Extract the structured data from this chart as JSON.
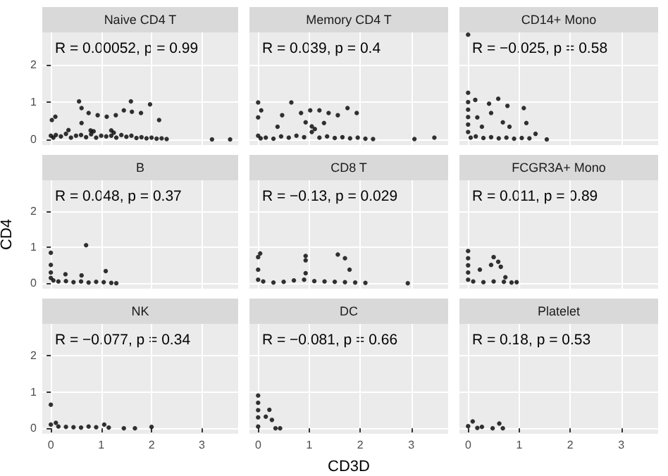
{
  "chart_data": [
    {
      "type": "scatter",
      "title": "Naive CD4 T",
      "annotations": [
        "R = 0.00052, p = 0.99"
      ],
      "x": [
        0.56,
        1.59,
        1.97,
        0.02,
        0.09,
        0.61,
        0.75,
        0.93,
        1.11,
        1.29,
        1.45,
        1.61,
        1.79,
        2.15,
        0.61,
        0.79,
        1.2,
        0,
        0.05,
        0.1,
        0.2,
        0.3,
        0.4,
        0.5,
        0.6,
        0.7,
        0.8,
        0.9,
        1.0,
        1.1,
        1.2,
        1.3,
        1.4,
        1.5,
        1.6,
        1.7,
        1.8,
        1.9,
        2.0,
        2.1,
        2.2,
        2.3,
        0.35,
        0.85,
        1.25,
        3.2,
        3.56
      ],
      "values": [
        1.02,
        1.02,
        0.94,
        0.52,
        0.61,
        0.84,
        0.71,
        0.65,
        0.61,
        0.65,
        0.78,
        0.74,
        0.71,
        0.52,
        0.44,
        0.24,
        0.24,
        0.1,
        0.05,
        0.12,
        0.08,
        0.15,
        0.05,
        0.1,
        0.12,
        0.06,
        0.14,
        0.05,
        0.1,
        0.08,
        0.1,
        0.05,
        0.12,
        0.07,
        0.1,
        0.04,
        0.06,
        0.03,
        0.05,
        0.02,
        0.03,
        0.01,
        0.25,
        0.22,
        0.18,
        0,
        0
      ],
      "color": "#000000",
      "marker": "circle",
      "xlim": [
        -0.17,
        3.72
      ],
      "ylim": [
        -0.15,
        2.87
      ],
      "xticks": [
        0,
        1,
        2,
        3
      ],
      "yticks": [
        0,
        1,
        2
      ],
      "grid": true,
      "tick_labels": "y"
    },
    {
      "type": "scatter",
      "title": "Memory CD4 T",
      "annotations": [
        "R = 0.039, p = 0.4"
      ],
      "x": [
        0,
        0.65,
        0.06,
        0,
        0.47,
        0.84,
        1.02,
        1.2,
        1.38,
        1.56,
        1.75,
        1.93,
        0.93,
        1.29,
        1.11,
        0.38,
        0,
        0.05,
        0.15,
        0.3,
        0.45,
        0.6,
        0.75,
        0.9,
        1.05,
        1.2,
        1.35,
        1.5,
        1.65,
        1.8,
        1.95,
        2.1,
        2.25,
        1.05,
        3.06,
        3.45
      ],
      "values": [
        0.99,
        0.99,
        0.78,
        0.59,
        0.65,
        0.71,
        0.78,
        0.78,
        0.71,
        0.65,
        0.84,
        0.71,
        0.46,
        0.44,
        0.28,
        0.34,
        0.1,
        0.03,
        0.05,
        0.02,
        0.08,
        0.05,
        0.1,
        0.06,
        0.2,
        0.05,
        0.08,
        0.04,
        0.06,
        0.03,
        0.05,
        0.02,
        0.01,
        0.35,
        0.01,
        0.05
      ],
      "color": "#000000",
      "marker": "circle",
      "xlim": [
        -0.17,
        3.72
      ],
      "ylim": [
        -0.15,
        2.87
      ],
      "xticks": [
        0,
        1,
        2,
        3
      ],
      "yticks": [
        0,
        1,
        2
      ],
      "grid": true,
      "tick_labels": false
    },
    {
      "type": "scatter",
      "title": "CD14+ Mono",
      "annotations": [
        "R = −0.025, p = 0.58"
      ],
      "x": [
        0,
        0,
        0,
        0,
        0,
        0,
        0,
        0.14,
        0.41,
        0.59,
        0.77,
        0.18,
        0.45,
        0.68,
        0.81,
        1.09,
        1.14,
        0.27,
        1.32,
        1.54,
        0.05,
        0.15,
        0.3,
        0.45,
        0.6,
        0.75,
        0.9,
        1.05,
        1.2
      ],
      "values": [
        2.81,
        1.25,
        1.0,
        0.8,
        0.6,
        0.4,
        0.2,
        1.06,
        0.96,
        1.09,
        0.9,
        0.59,
        0.71,
        0.46,
        0.34,
        0.84,
        0.44,
        0.34,
        0.15,
        0,
        0.05,
        0.08,
        0.04,
        0.06,
        0.03,
        0.05,
        0.02,
        0.04,
        0.03
      ],
      "color": "#000000",
      "marker": "circle",
      "xlim": [
        -0.17,
        3.72
      ],
      "ylim": [
        -0.15,
        2.87
      ],
      "xticks": [
        0,
        1,
        2,
        3
      ],
      "yticks": [
        0,
        1,
        2
      ],
      "grid": true,
      "tick_labels": false
    },
    {
      "type": "scatter",
      "title": "B",
      "ylabel": "CD4",
      "annotations": [
        "R = 0.048, p = 0.37"
      ],
      "x": [
        0,
        0.7,
        0,
        0.29,
        0.61,
        1.09,
        0,
        0.05,
        0.15,
        0.3,
        0.45,
        0.6,
        0.75,
        0.9,
        1.05,
        1.2,
        1.3,
        0
      ],
      "values": [
        0.85,
        1.06,
        0.51,
        0.25,
        0.22,
        0.34,
        0.3,
        0.08,
        0.05,
        0.06,
        0.03,
        0.05,
        0.02,
        0.04,
        0.03,
        0.01,
        0,
        0.15
      ],
      "color": "#000000",
      "marker": "circle",
      "xlim": [
        -0.17,
        3.72
      ],
      "ylim": [
        -0.15,
        2.87
      ],
      "xticks": [
        0,
        1,
        2,
        3
      ],
      "yticks": [
        0,
        1,
        2
      ],
      "grid": true,
      "tick_labels": "y"
    },
    {
      "type": "scatter",
      "title": "CD8 T",
      "annotations": [
        "R = −0.13, p = 0.029"
      ],
      "x": [
        0.04,
        0,
        0.93,
        0.93,
        1.56,
        1.7,
        1.79,
        0,
        0.93,
        0,
        0.1,
        0.3,
        0.5,
        0.7,
        0.9,
        1.1,
        1.3,
        1.5,
        1.7,
        1.9,
        2.1,
        2.93
      ],
      "values": [
        0.83,
        0.73,
        0.76,
        0.64,
        0.8,
        0.7,
        0.38,
        0.38,
        0.28,
        0.1,
        0.05,
        0.02,
        0.04,
        0.08,
        0.1,
        0.06,
        0.05,
        0.04,
        0.03,
        0.02,
        0.01,
        0
      ],
      "color": "#000000",
      "marker": "circle",
      "xlim": [
        -0.17,
        3.72
      ],
      "ylim": [
        -0.15,
        2.87
      ],
      "xticks": [
        0,
        1,
        2,
        3
      ],
      "yticks": [
        0,
        1,
        2
      ],
      "grid": true,
      "tick_labels": false
    },
    {
      "type": "scatter",
      "title": "FCGR3A+ Mono",
      "annotations": [
        "R = 0.011, p = 0.89"
      ],
      "x": [
        0,
        0,
        0,
        0,
        0,
        0.5,
        0.59,
        0.45,
        0.64,
        0.23,
        0.73,
        0.1,
        0.3,
        0.5,
        0.7,
        0.85,
        0.95
      ],
      "values": [
        0.9,
        0.7,
        0.5,
        0.3,
        0.1,
        0.73,
        0.6,
        0.51,
        0.46,
        0.38,
        0.17,
        0.05,
        0.03,
        0.05,
        0.04,
        0.02,
        0.03
      ],
      "color": "#000000",
      "marker": "circle",
      "xlim": [
        -0.17,
        3.72
      ],
      "ylim": [
        -0.15,
        2.87
      ],
      "xticks": [
        0,
        1,
        2,
        3
      ],
      "yticks": [
        0,
        1,
        2
      ],
      "grid": true,
      "tick_labels": false
    },
    {
      "type": "scatter",
      "title": "NK",
      "annotations": [
        "R = −0.077, p = 0.34"
      ],
      "x": [
        0,
        0,
        0.15,
        0.3,
        0.45,
        0.6,
        0.75,
        0.9,
        1.06,
        1.15,
        1.45,
        1.67,
        2.0,
        0.1
      ],
      "values": [
        0.65,
        0.1,
        0.05,
        0.04,
        0.03,
        0.02,
        0.05,
        0.03,
        0.1,
        0.02,
        0,
        0,
        0.04,
        0.15
      ],
      "color": "#000000",
      "marker": "circle",
      "xlim": [
        -0.17,
        3.72
      ],
      "ylim": [
        -0.15,
        2.87
      ],
      "xticks": [
        0,
        1,
        2,
        3
      ],
      "yticks": [
        0,
        1,
        2
      ],
      "grid": true
    },
    {
      "type": "scatter",
      "title": "DC",
      "xlabel": "CD3D",
      "annotations": [
        "R = −0.081, p = 0.66"
      ],
      "x": [
        0,
        0,
        0,
        0,
        0,
        0.22,
        0.15,
        0.27,
        0.34,
        0.43
      ],
      "values": [
        0.9,
        0.7,
        0.5,
        0.3,
        0.05,
        0.51,
        0.32,
        0.23,
        0,
        0
      ],
      "color": "#000000",
      "marker": "circle",
      "xlim": [
        -0.17,
        3.72
      ],
      "ylim": [
        -0.15,
        2.87
      ],
      "xticks": [
        0,
        1,
        2,
        3
      ],
      "yticks": [
        0,
        1,
        2
      ],
      "grid": true,
      "tick_labels": "x"
    },
    {
      "type": "scatter",
      "title": "Platelet",
      "annotations": [
        "R = 0.18, p = 0.53"
      ],
      "x": [
        0,
        0.09,
        0.18,
        0.27,
        0.48,
        0.61,
        0.68
      ],
      "values": [
        0.06,
        0.19,
        0.01,
        0.04,
        0,
        0.13,
        0
      ],
      "color": "#000000",
      "marker": "circle",
      "xlim": [
        -0.17,
        3.72
      ],
      "ylim": [
        -0.15,
        2.87
      ],
      "xticks": [
        0,
        1,
        2,
        3
      ],
      "yticks": [
        0,
        1,
        2
      ],
      "grid": true,
      "tick_labels": "x"
    }
  ]
}
